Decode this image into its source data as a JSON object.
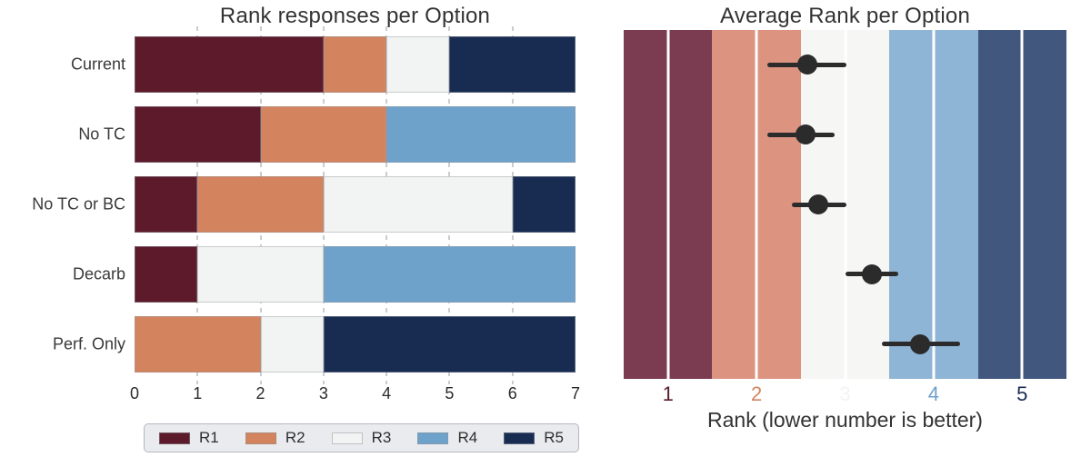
{
  "figure": {
    "background": "#ffffff",
    "text_color": "#333333"
  },
  "chart_data": [
    {
      "type": "bar",
      "orientation": "horizontal",
      "stacked": true,
      "title": "Rank responses per Option",
      "categories": [
        "Current",
        "No TC",
        "No TC or BC",
        "Decarb",
        "Perf. Only"
      ],
      "series": [
        {
          "name": "R1",
          "color": "#5c1a2b",
          "values": [
            3,
            2,
            1,
            1,
            0
          ]
        },
        {
          "name": "R2",
          "color": "#d3845f",
          "values": [
            1,
            2,
            2,
            0,
            2
          ]
        },
        {
          "name": "R3",
          "color": "#f2f4f3",
          "values": [
            1,
            0,
            3,
            2,
            1
          ]
        },
        {
          "name": "R4",
          "color": "#6fa2cb",
          "values": [
            0,
            3,
            0,
            4,
            0
          ]
        },
        {
          "name": "R5",
          "color": "#182c52",
          "values": [
            2,
            0,
            1,
            0,
            4
          ]
        }
      ],
      "xlim": [
        0,
        7
      ],
      "x_ticks": [
        "0",
        "1",
        "2",
        "3",
        "4",
        "5",
        "6",
        "7"
      ],
      "grid": "dashed-vertical-at-integers",
      "grid_color": "#c9ccd1",
      "legend_position": "bottom",
      "legend_entries": [
        "R1",
        "R2",
        "R3",
        "R4",
        "R5"
      ]
    },
    {
      "type": "scatter",
      "subtype": "pointplot-with-ci",
      "title": "Average Rank per Option",
      "xlabel": "Rank (lower number is better)",
      "xlim": [
        0.5,
        5.5
      ],
      "x_ticks": [
        "1",
        "2",
        "3",
        "4",
        "5"
      ],
      "tick_colors": [
        "#5c1a2b",
        "#d3845f",
        "#f2f4f3",
        "#6fa2cb",
        "#182c52"
      ],
      "bands": [
        {
          "rank": 1,
          "color": "#7b3c52"
        },
        {
          "rank": 2,
          "color": "#dc9480"
        },
        {
          "rank": 3,
          "color": "#f6f7f5"
        },
        {
          "rank": 4,
          "color": "#8fb5d6"
        },
        {
          "rank": 5,
          "color": "#41577d"
        }
      ],
      "grid": "white-vertical-at-integers",
      "categories": [
        "Current",
        "No TC",
        "No TC or BC",
        "Decarb",
        "Perf. Only"
      ],
      "points": [
        {
          "category": "Current",
          "mean": 2.57,
          "ci_low": 2.12,
          "ci_high": 3.02
        },
        {
          "category": "No TC",
          "mean": 2.55,
          "ci_low": 2.12,
          "ci_high": 2.88
        },
        {
          "category": "No TC or BC",
          "mean": 2.7,
          "ci_low": 2.4,
          "ci_high": 3.02
        },
        {
          "category": "Decarb",
          "mean": 3.3,
          "ci_low": 3.0,
          "ci_high": 3.6
        },
        {
          "category": "Perf. Only",
          "mean": 3.85,
          "ci_low": 3.42,
          "ci_high": 4.3
        }
      ],
      "point_color": "#2b2b2b"
    }
  ]
}
